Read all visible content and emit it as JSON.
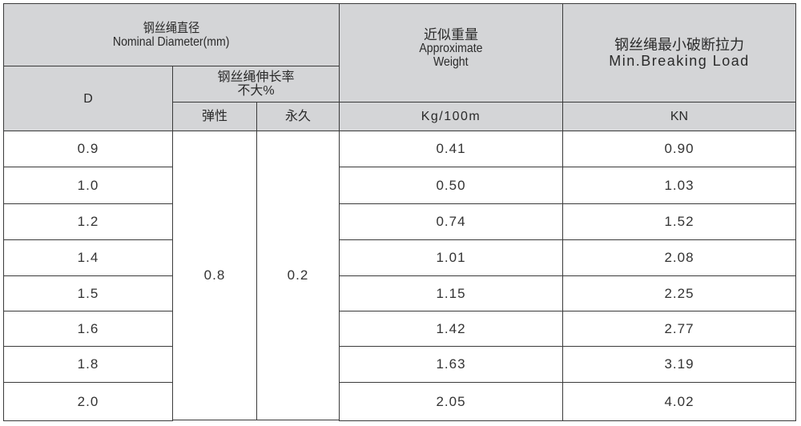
{
  "header": {
    "diameter_cn": "钢丝绳直径",
    "diameter_en": "Nominal Diameter(mm)",
    "d_label": "D",
    "elongation_cn": "钢丝绳伸长率",
    "elongation_sub": "不大%",
    "elastic": "弹性",
    "permanent": "永久",
    "weight_cn": "近似重量",
    "weight_en1": "Approximate",
    "weight_en2": "Weight",
    "weight_unit": "Kg/100m",
    "load_cn": "钢丝绳最小破断拉力",
    "load_en": "Min.Breaking Load",
    "load_unit": "KN"
  },
  "elastic_value": "0.8",
  "permanent_value": "0.2",
  "rows": [
    {
      "d": "0.9",
      "weight": "0.41",
      "load": "0.90"
    },
    {
      "d": "1.0",
      "weight": "0.50",
      "load": "1.03"
    },
    {
      "d": "1.2",
      "weight": "0.74",
      "load": "1.52"
    },
    {
      "d": "1.4",
      "weight": "1.01",
      "load": "2.08"
    },
    {
      "d": "1.5",
      "weight": "1.15",
      "load": "2.25"
    },
    {
      "d": "1.6",
      "weight": "1.42",
      "load": "2.77"
    },
    {
      "d": "1.8",
      "weight": "1.63",
      "load": "3.19"
    },
    {
      "d": "2.0",
      "weight": "2.05",
      "load": "4.02"
    }
  ]
}
